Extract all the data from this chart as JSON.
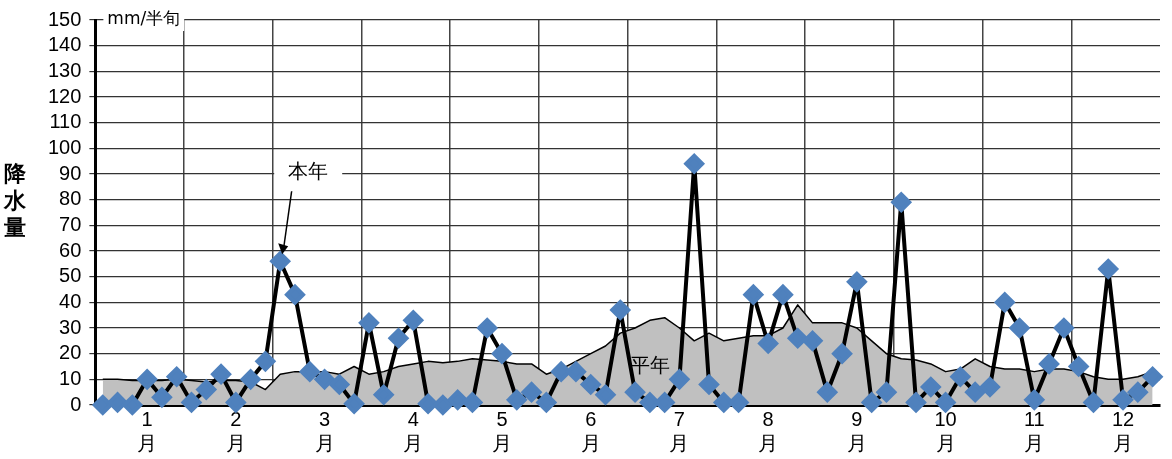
{
  "chart_data": {
    "type": "line",
    "ylabel": "降水量",
    "annotations": [
      "mm/半旬"
    ],
    "categories": [
      null,
      null,
      null,
      "1\n月",
      null,
      null,
      null,
      null,
      null,
      "2\n月",
      null,
      null,
      null,
      null,
      null,
      "3\n月",
      null,
      null,
      null,
      null,
      null,
      "4\n月",
      null,
      null,
      null,
      null,
      null,
      "5\n月",
      null,
      null,
      null,
      null,
      null,
      "6\n月",
      null,
      null,
      null,
      null,
      null,
      "7\n月",
      null,
      null,
      null,
      null,
      null,
      "8\n月",
      null,
      null,
      null,
      null,
      null,
      "9\n月",
      null,
      null,
      null,
      null,
      null,
      "10\n月",
      null,
      null,
      null,
      null,
      null,
      "11\n月",
      null,
      null,
      null,
      null,
      null,
      "12\n月",
      null,
      null
    ],
    "ylim": [
      0,
      150
    ],
    "yticks": [
      0,
      10,
      20,
      30,
      40,
      50,
      60,
      70,
      80,
      90,
      100,
      110,
      120,
      130,
      140,
      150
    ],
    "grid": true,
    "legend": false,
    "series": [
      {
        "name": "平年",
        "type": "area",
        "color": "#c0c0c0",
        "values": [
          10,
          10,
          9.5,
          9.5,
          9.5,
          10,
          9.5,
          9,
          9.5,
          9.5,
          9,
          6,
          12,
          13,
          13,
          13,
          12,
          15,
          12,
          13,
          15,
          16,
          17,
          16.5,
          17,
          18,
          17.5,
          17,
          16,
          16,
          12,
          14,
          17,
          20,
          23,
          28,
          30,
          33,
          34,
          30,
          25,
          28,
          25,
          26,
          27,
          27,
          30,
          39,
          32,
          32,
          32,
          30,
          25,
          20,
          18,
          17.5,
          16,
          13,
          14,
          18,
          15,
          14,
          14,
          13,
          14,
          14,
          13,
          11,
          10,
          10,
          11,
          13
        ]
      },
      {
        "name": "本年",
        "color": "#4f81bd",
        "marker": "diamond",
        "values": [
          0,
          1,
          0,
          10,
          3,
          11,
          1,
          6,
          12,
          1,
          10,
          17,
          56,
          43,
          13,
          10,
          8,
          0.5,
          32,
          4,
          26,
          33,
          0.5,
          0,
          2,
          1,
          30,
          20,
          2,
          5,
          1,
          13,
          13,
          8,
          4,
          37,
          5,
          1,
          1,
          10,
          94,
          8,
          1,
          1,
          43,
          24,
          43,
          26,
          25,
          5,
          20,
          48,
          1,
          5,
          79,
          1,
          7,
          1,
          11,
          5,
          7,
          40,
          30,
          2,
          16,
          30,
          15,
          1,
          53,
          2,
          5,
          11
        ]
      }
    ]
  }
}
